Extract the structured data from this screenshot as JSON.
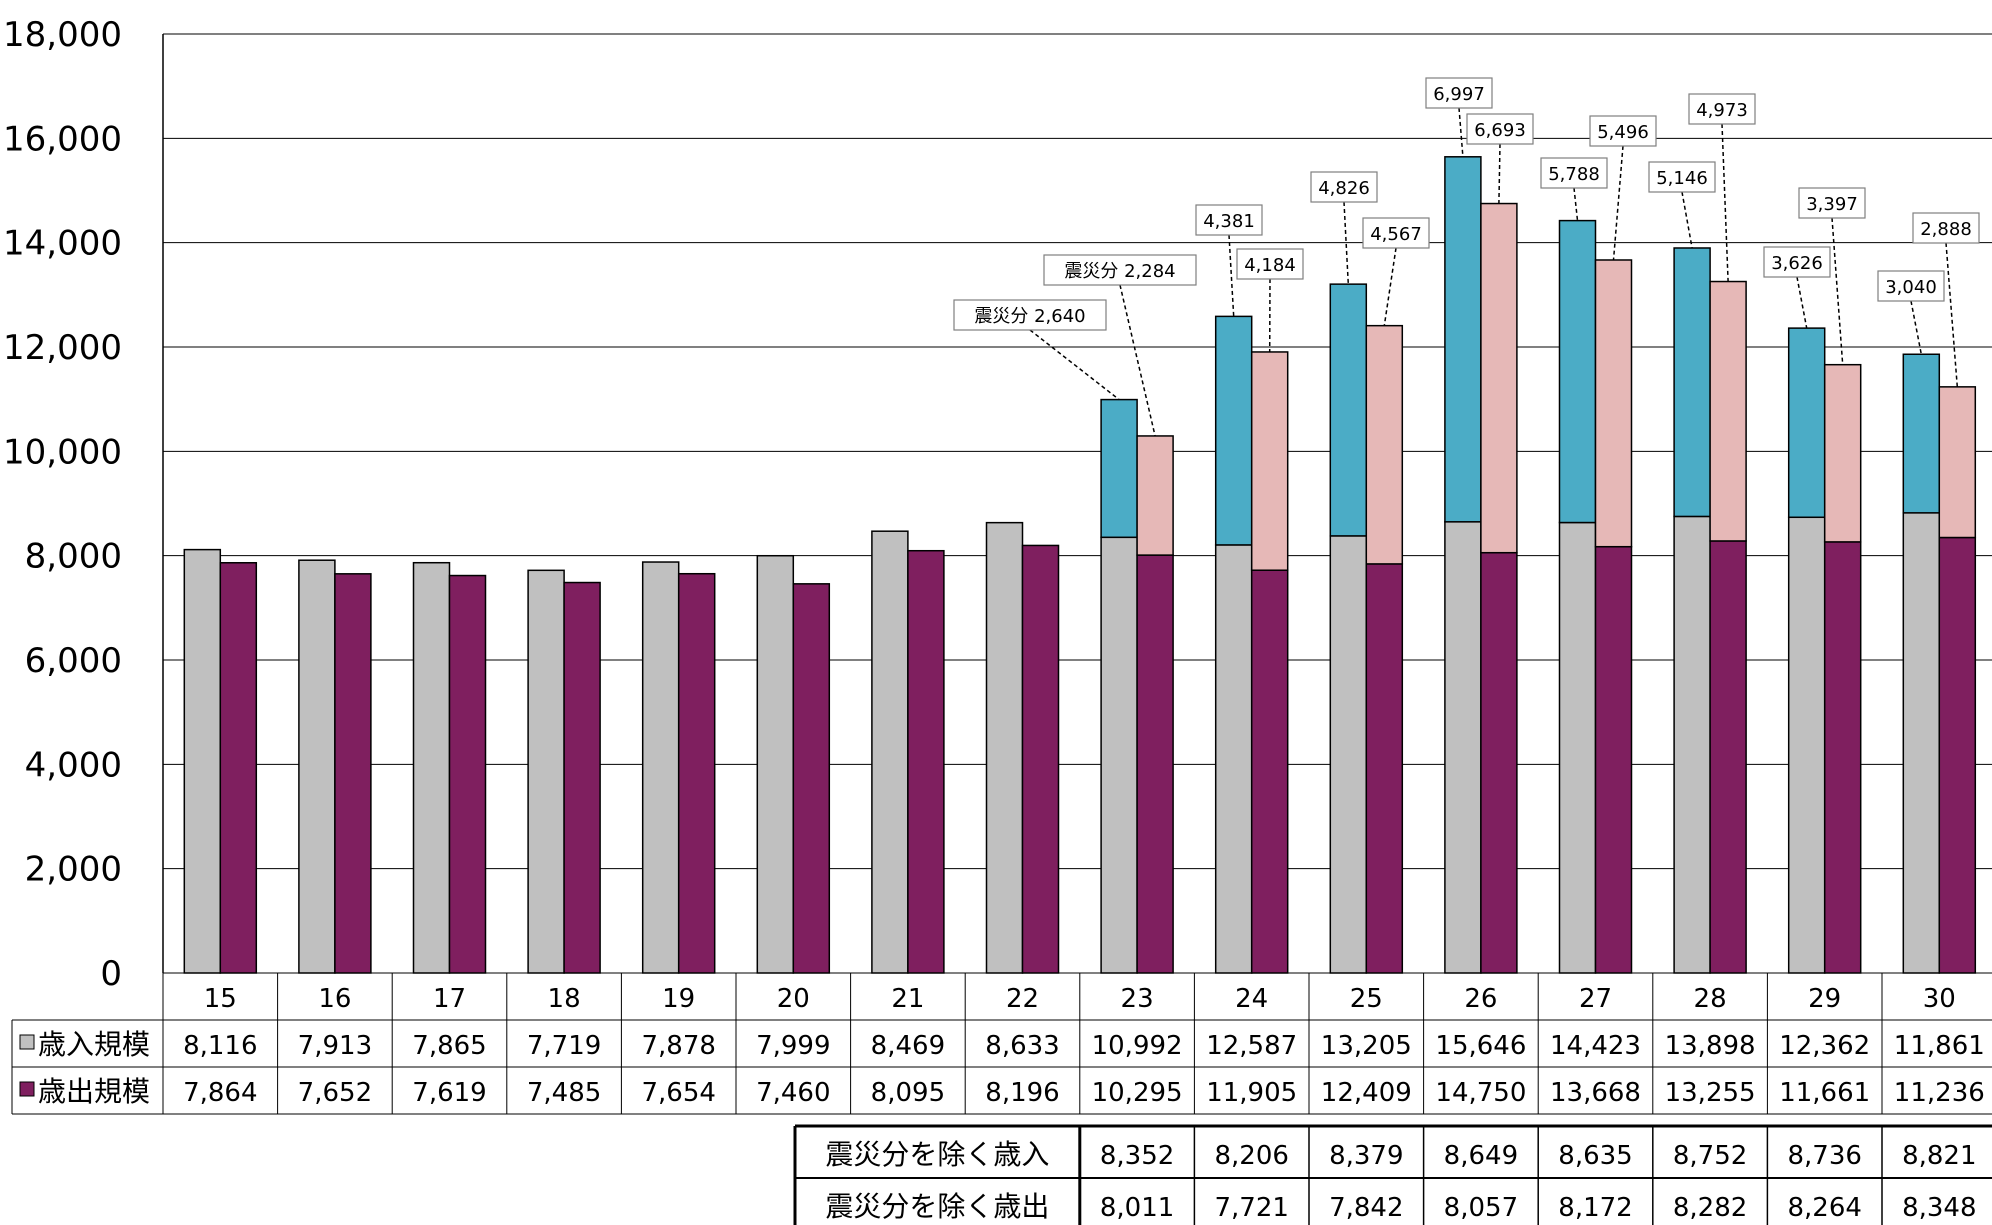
{
  "chart_data": {
    "type": "bar",
    "categories": [
      "15",
      "16",
      "17",
      "18",
      "19",
      "20",
      "21",
      "22",
      "23",
      "24",
      "25",
      "26",
      "27",
      "28",
      "29",
      "30"
    ],
    "ylim": [
      0,
      18000
    ],
    "yticks": [
      "0",
      "2,000",
      "4,000",
      "6,000",
      "8,000",
      "10,000",
      "12,000",
      "14,000",
      "16,000",
      "18,000"
    ],
    "grid": true,
    "series": [
      {
        "name": "歳入規模",
        "values": [
          8116,
          7913,
          7865,
          7719,
          7878,
          7999,
          8469,
          8633,
          10992,
          12587,
          13205,
          15646,
          14423,
          13898,
          12362,
          11861
        ],
        "labels": [
          "8,116",
          "7,913",
          "7,865",
          "7,719",
          "7,878",
          "7,999",
          "8,469",
          "8,633",
          "10,992",
          "12,587",
          "13,205",
          "15,646",
          "14,423",
          "13,898",
          "12,362",
          "11,861"
        ]
      },
      {
        "name": "歳出規模",
        "values": [
          7864,
          7652,
          7619,
          7485,
          7654,
          7460,
          8095,
          8196,
          10295,
          11905,
          12409,
          14750,
          13668,
          13255,
          11661,
          11236
        ],
        "labels": [
          "7,864",
          "7,652",
          "7,619",
          "7,485",
          "7,654",
          "7,460",
          "8,095",
          "8,196",
          "10,295",
          "11,905",
          "12,409",
          "14,750",
          "13,668",
          "13,255",
          "11,661",
          "11,236"
        ]
      }
    ],
    "disaster_revenue": [
      2640,
      4381,
      4826,
      6997,
      5788,
      5146,
      3626,
      3040
    ],
    "disaster_revenue_labels": [
      "震災分 2,640",
      "4,381",
      "4,826",
      "6,997",
      "5,788",
      "5,146",
      "3,626",
      "3,040"
    ],
    "disaster_expenditure": [
      2284,
      4184,
      4567,
      6693,
      5496,
      4973,
      3397,
      2888
    ],
    "disaster_expenditure_labels": [
      "震災分 2,284",
      "4,184",
      "4,567",
      "6,693",
      "5,496",
      "4,973",
      "3,397",
      "2,888"
    ],
    "excl_table": {
      "start_index": 8,
      "rows": [
        {
          "name": "震災分を除く歳入",
          "values": [
            "8,352",
            "8,206",
            "8,379",
            "8,649",
            "8,635",
            "8,752",
            "8,736",
            "8,821"
          ]
        },
        {
          "name": "震災分を除く歳出",
          "values": [
            "8,011",
            "7,721",
            "7,842",
            "8,057",
            "8,172",
            "8,282",
            "8,264",
            "8,348"
          ]
        }
      ]
    },
    "colors": {
      "revenue": "#c0c0c0",
      "expenditure": "#7f1f5f",
      "disaster_revenue": "#4bacc6",
      "disaster_expenditure": "#e6b8b7"
    }
  }
}
